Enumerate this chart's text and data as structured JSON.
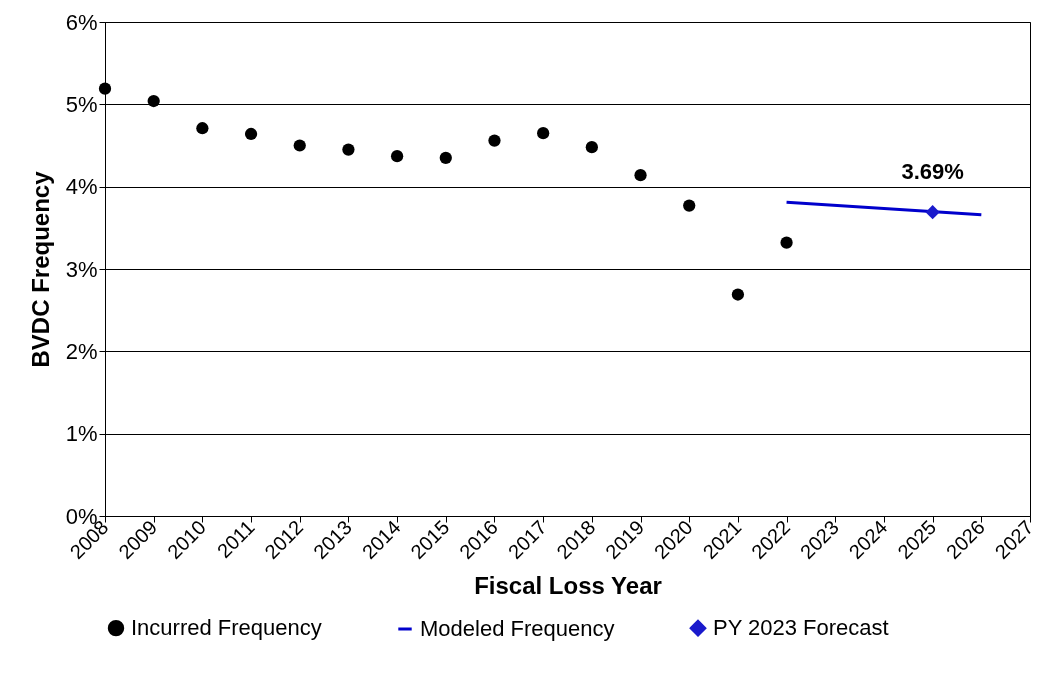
{
  "chart_data": {
    "type": "scatter",
    "xlabel": "Fiscal Loss Year",
    "ylabel": "BVDC Frequency",
    "xlim": [
      2008,
      2027
    ],
    "xticks": [
      2008,
      2009,
      2010,
      2011,
      2012,
      2013,
      2014,
      2015,
      2016,
      2017,
      2018,
      2019,
      2020,
      2021,
      2022,
      2023,
      2024,
      2025,
      2026,
      2027
    ],
    "ylim": [
      0,
      6
    ],
    "yticks": [
      {
        "value": 0,
        "label": "0%"
      },
      {
        "value": 1,
        "label": "1%"
      },
      {
        "value": 2,
        "label": "2%"
      },
      {
        "value": 3,
        "label": "3%"
      },
      {
        "value": 4,
        "label": "4%"
      },
      {
        "value": 5,
        "label": "5%"
      },
      {
        "value": 6,
        "label": "6%"
      }
    ],
    "grid": "y",
    "legend": "bottom",
    "series": [
      {
        "name": "Incurred Frequency",
        "marker": "circle",
        "color": "#000000",
        "x": [
          2008,
          2009,
          2010,
          2011,
          2012,
          2013,
          2014,
          2015,
          2016,
          2017,
          2018,
          2019,
          2020,
          2021,
          2022
        ],
        "values": [
          5.19,
          5.04,
          4.71,
          4.64,
          4.5,
          4.45,
          4.37,
          4.35,
          4.56,
          4.65,
          4.48,
          4.14,
          3.77,
          2.69,
          3.32
        ]
      },
      {
        "name": "Modeled Frequency",
        "type": "line",
        "line_style": "solid",
        "color": "#0000cc",
        "x": [
          2022,
          2026
        ],
        "values": [
          3.81,
          3.66
        ]
      },
      {
        "name": "PY 2023 Forecast",
        "marker": "diamond",
        "color": "#1a1acc",
        "x": [
          2025
        ],
        "values": [
          3.69
        ],
        "value_labels": [
          "3.69%"
        ]
      }
    ]
  }
}
